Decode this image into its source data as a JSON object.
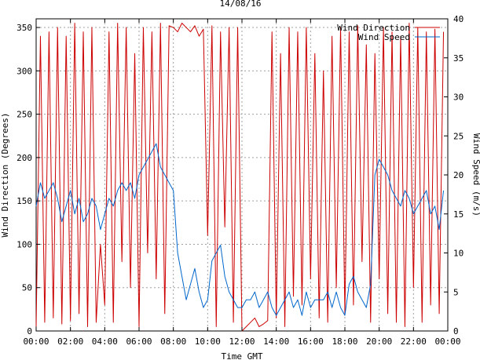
{
  "chart_data": {
    "type": "line",
    "title": "14/08/16",
    "xlabel": "Time GMT",
    "ylabel_left": "Wind Direction (Degrees)",
    "ylabel_right": "Wind Speed (m/s)",
    "x_ticks": [
      "00:00",
      "02:00",
      "04:00",
      "06:00",
      "08:00",
      "10:00",
      "12:00",
      "14:00",
      "16:00",
      "18:00",
      "20:00",
      "22:00",
      "00:00"
    ],
    "xlim_hours": [
      0,
      24
    ],
    "ylim_left": [
      0,
      360
    ],
    "ylim_right": [
      0,
      40
    ],
    "y_ticks_left": [
      0,
      50,
      100,
      150,
      200,
      250,
      300,
      350
    ],
    "y_ticks_right": [
      0,
      5,
      10,
      15,
      20,
      25,
      30,
      35,
      40
    ],
    "grid": true,
    "legend_position": "top-right",
    "series": [
      {
        "name": "Wind Direction",
        "axis": "left",
        "color": "#cc0000",
        "sample_interval_hours": 0.25,
        "values": [
          5,
          340,
          10,
          345,
          15,
          350,
          8,
          340,
          12,
          355,
          20,
          345,
          5,
          350,
          10,
          100,
          30,
          345,
          10,
          355,
          80,
          350,
          50,
          320,
          5,
          350,
          90,
          345,
          60,
          355,
          20,
          352,
          350,
          345,
          355,
          350,
          345,
          352,
          340,
          348,
          110,
          352,
          5,
          345,
          120,
          350,
          10,
          350,
          0,
          5,
          10,
          15,
          5,
          8,
          12,
          345,
          15,
          320,
          5,
          350,
          40,
          345,
          30,
          350,
          60,
          320,
          15,
          300,
          10,
          340,
          50,
          350,
          20,
          345,
          30,
          352,
          80,
          330,
          10,
          320,
          60,
          350,
          20,
          345,
          10,
          340,
          5,
          355,
          50,
          350,
          10,
          345,
          30,
          348,
          20,
          345
        ]
      },
      {
        "name": "Wind Speed",
        "axis": "right",
        "color": "#0066cc",
        "sample_interval_hours": 0.25,
        "values": [
          16,
          19,
          17,
          18,
          19,
          17,
          14,
          16,
          18,
          15,
          17,
          14,
          15,
          17,
          16,
          13,
          15,
          17,
          16,
          18,
          19,
          18,
          19,
          17,
          20,
          21,
          22,
          23,
          24,
          21,
          20,
          19,
          18,
          10,
          7,
          4,
          6,
          8,
          5,
          3,
          4,
          9,
          10,
          11,
          7,
          5,
          4,
          3,
          3,
          4,
          4,
          5,
          3,
          4,
          5,
          3,
          2,
          3,
          4,
          5,
          3,
          4,
          2,
          5,
          3,
          4,
          4,
          4,
          5,
          3,
          5,
          3,
          2,
          6,
          7,
          5,
          4,
          3,
          6,
          20,
          22,
          21,
          20,
          18,
          17,
          16,
          18,
          17,
          15,
          16,
          17,
          18,
          15,
          16,
          13,
          18
        ]
      }
    ]
  }
}
